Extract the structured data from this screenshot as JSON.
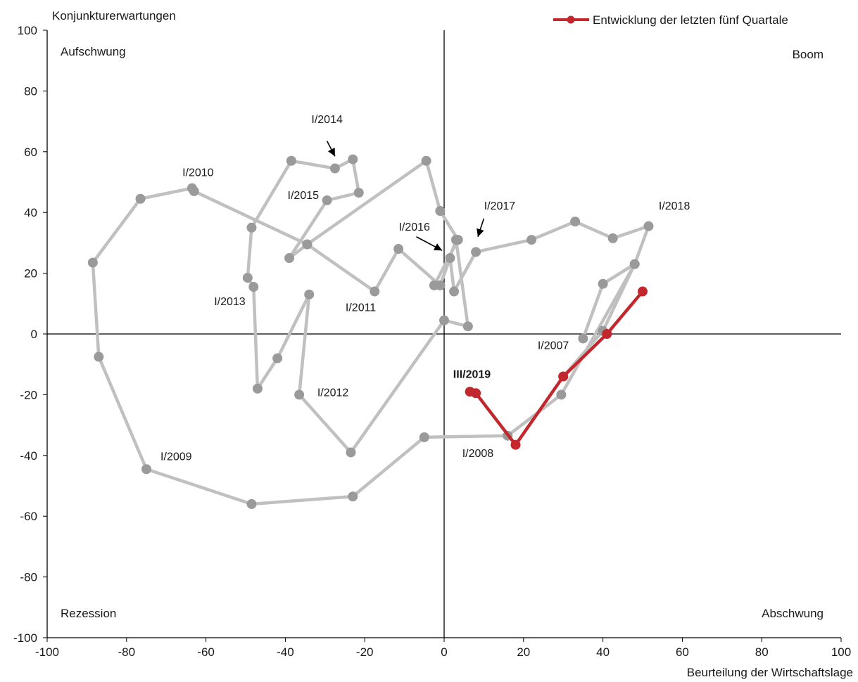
{
  "chart_data": {
    "type": "line",
    "xlabel": "Beurteilung der Wirtschaftslage",
    "ylabel": "Konjunkturerwartungen",
    "xlim": [
      -100,
      100
    ],
    "ylim": [
      -100,
      100
    ],
    "xticks": [
      -100,
      -80,
      -60,
      -40,
      -20,
      0,
      20,
      40,
      60,
      80,
      100
    ],
    "yticks": [
      -100,
      -80,
      -60,
      -40,
      -20,
      0,
      20,
      40,
      60,
      80,
      100
    ],
    "grid": false,
    "legend_position": "top-right",
    "quadrant_labels": {
      "top_left": "Aufschwung",
      "top_right": "Boom",
      "bottom_left": "Rezession",
      "bottom_right": "Abschwung"
    },
    "colors": {
      "history": "#c0c0c0",
      "history_point": "#9a9a9a",
      "recent": "#c1272d"
    },
    "series": [
      {
        "role": "history",
        "points": [
          [
            35,
            -1.5
          ],
          [
            40,
            16.5
          ],
          [
            48,
            23
          ],
          [
            29.5,
            -20
          ],
          [
            16,
            -33.5
          ],
          [
            -5,
            -34
          ],
          [
            -23,
            -53.5
          ],
          [
            -48.5,
            -56
          ],
          [
            -75,
            -44.5
          ],
          [
            -87,
            -7.5
          ],
          [
            -88.5,
            23.5
          ],
          [
            -76.5,
            44.5
          ],
          [
            -63.5,
            48
          ],
          [
            -63,
            47
          ],
          [
            -34.5,
            29.5
          ],
          [
            -17.5,
            14
          ],
          [
            -11.5,
            28
          ],
          [
            -1,
            16
          ],
          [
            3,
            31
          ],
          [
            6,
            2.5
          ],
          [
            0,
            4.5
          ],
          [
            -23.5,
            -39
          ],
          [
            -36.5,
            -20
          ],
          [
            -34,
            13
          ],
          [
            -42,
            -8
          ],
          [
            -47,
            -18
          ],
          [
            -48,
            15.5
          ],
          [
            -49.5,
            18.5
          ],
          [
            -48.5,
            35
          ],
          [
            -38.5,
            57
          ],
          [
            -27.5,
            54.5
          ],
          [
            -23,
            57.5
          ],
          [
            -21.5,
            46.5
          ],
          [
            -29.5,
            44
          ],
          [
            -39,
            25
          ],
          [
            -34.5,
            29.5
          ],
          [
            -4.5,
            57
          ],
          [
            -1,
            40.5
          ],
          [
            3.5,
            31
          ],
          [
            -2.5,
            16
          ],
          [
            -1,
            16
          ],
          [
            1.5,
            25
          ],
          [
            2.5,
            14
          ],
          [
            8,
            27
          ],
          [
            22,
            31
          ],
          [
            33,
            37
          ],
          [
            42.5,
            31.5
          ],
          [
            51.5,
            35.5
          ],
          [
            48,
            23
          ],
          [
            40,
            1
          ],
          [
            30,
            -14
          ]
        ]
      },
      {
        "name": "Entwicklung der letzten fünf Quartale",
        "role": "recent",
        "points": [
          [
            50,
            14
          ],
          [
            41,
            0
          ],
          [
            30,
            -14
          ],
          [
            18,
            -36.5
          ],
          [
            8,
            -19.5
          ],
          [
            6.5,
            -19
          ]
        ]
      }
    ],
    "annotations": [
      {
        "text": "I/2010",
        "x": -62,
        "y": 52,
        "anchor": "middle"
      },
      {
        "text": "I/2014",
        "x": -29.5,
        "y": 69.5,
        "anchor": "middle"
      },
      {
        "text": "I/2015",
        "x": -35.5,
        "y": 44.5,
        "anchor": "middle"
      },
      {
        "text": "I/2016",
        "x": -7.5,
        "y": 34,
        "anchor": "middle"
      },
      {
        "text": "I/2017",
        "x": 14,
        "y": 41,
        "anchor": "middle"
      },
      {
        "text": "I/2018",
        "x": 58,
        "y": 41,
        "anchor": "middle"
      },
      {
        "text": "I/2011",
        "x": -21,
        "y": 7.5,
        "anchor": "middle"
      },
      {
        "text": "I/2013",
        "x": -54,
        "y": 9.5,
        "anchor": "middle"
      },
      {
        "text": "I/2012",
        "x": -28,
        "y": -20.5,
        "anchor": "middle"
      },
      {
        "text": "I/2009",
        "x": -67.5,
        "y": -41.5,
        "anchor": "middle"
      },
      {
        "text": "I/2008",
        "x": 8.5,
        "y": -40.5,
        "anchor": "middle"
      },
      {
        "text": "I/2007",
        "x": 27.5,
        "y": -5,
        "anchor": "middle"
      },
      {
        "text": "III/2019",
        "x": 7,
        "y": -14.5,
        "anchor": "middle",
        "bold": true
      }
    ],
    "arrows": [
      {
        "from": [
          -29.5,
          63.5
        ],
        "to": [
          -27.5,
          58.5
        ]
      },
      {
        "from": [
          -7,
          32
        ],
        "to": [
          -0.5,
          27.5
        ]
      },
      {
        "from": [
          10,
          38
        ],
        "to": [
          8.5,
          32
        ]
      }
    ]
  }
}
